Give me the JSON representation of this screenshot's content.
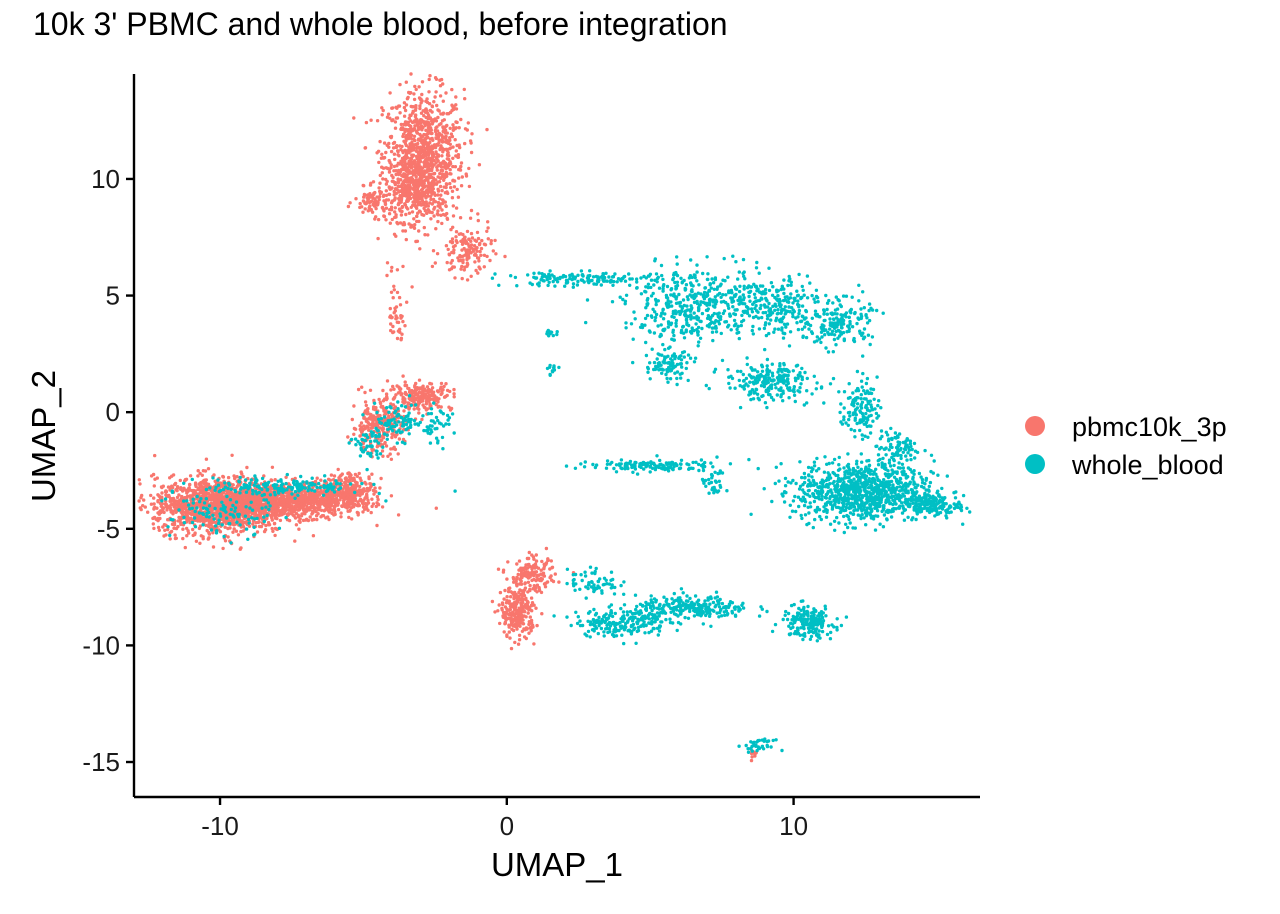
{
  "chart_data": {
    "type": "scatter",
    "title": "10k 3' PBMC and whole blood, before integration",
    "xlabel": "UMAP_1",
    "ylabel": "UMAP_2",
    "xlim": [
      -13,
      16.5
    ],
    "ylim": [
      -16.5,
      14.5
    ],
    "xticks": [
      -10,
      0,
      10
    ],
    "yticks": [
      -15,
      -10,
      -5,
      0,
      5,
      10
    ],
    "grid": false,
    "legend_position": "right",
    "series": [
      {
        "name": "pbmc10k_3p",
        "color": "#F8766D",
        "clusters": [
          {
            "cx": -2.9,
            "cy": 11.0,
            "sx": 0.7,
            "sy": 1.4,
            "n": 900
          },
          {
            "cx": -3.3,
            "cy": 9.6,
            "sx": 0.45,
            "sy": 0.7,
            "n": 300
          },
          {
            "cx": -4.6,
            "cy": 9.0,
            "sx": 0.35,
            "sy": 0.3,
            "n": 80
          },
          {
            "cx": -1.4,
            "cy": 6.9,
            "sx": 0.45,
            "sy": 0.55,
            "n": 140
          },
          {
            "cx": -4.0,
            "cy": 4.8,
            "sx": 0.1,
            "sy": 0.9,
            "n": 25
          },
          {
            "cx": -3.7,
            "cy": 4.0,
            "sx": 0.1,
            "sy": 0.6,
            "n": 20
          },
          {
            "cx": -10.0,
            "cy": -4.0,
            "sx": 1.15,
            "sy": 0.6,
            "n": 1400
          },
          {
            "cx": -7.6,
            "cy": -3.8,
            "sx": 1.2,
            "sy": 0.35,
            "n": 800
          },
          {
            "cx": -5.5,
            "cy": -3.4,
            "sx": 0.45,
            "sy": 0.4,
            "n": 280
          },
          {
            "cx": -4.5,
            "cy": -0.6,
            "sx": 0.45,
            "sy": 0.55,
            "n": 260
          },
          {
            "cx": -3.0,
            "cy": 0.7,
            "sx": 0.55,
            "sy": 0.3,
            "n": 220
          },
          {
            "cx": 0.4,
            "cy": -8.6,
            "sx": 0.3,
            "sy": 0.55,
            "n": 260
          },
          {
            "cx": 0.9,
            "cy": -7.0,
            "sx": 0.4,
            "sy": 0.35,
            "n": 140
          },
          {
            "cx": 8.6,
            "cy": -14.7,
            "sx": 0.08,
            "sy": 0.12,
            "n": 10
          }
        ]
      },
      {
        "name": "whole_blood",
        "color": "#00BFC4",
        "clusters": [
          {
            "cx": 2.5,
            "cy": 5.7,
            "sx": 1.3,
            "sy": 0.15,
            "n": 140
          },
          {
            "cx": 6.5,
            "cy": 4.6,
            "sx": 1.2,
            "sy": 0.8,
            "n": 420
          },
          {
            "cx": 9.3,
            "cy": 4.6,
            "sx": 0.9,
            "sy": 0.7,
            "n": 260
          },
          {
            "cx": 11.6,
            "cy": 3.8,
            "sx": 0.55,
            "sy": 0.5,
            "n": 160
          },
          {
            "cx": 5.6,
            "cy": 2.0,
            "sx": 0.4,
            "sy": 0.35,
            "n": 90
          },
          {
            "cx": 9.2,
            "cy": 1.3,
            "sx": 0.8,
            "sy": 0.4,
            "n": 220
          },
          {
            "cx": 12.3,
            "cy": 0.2,
            "sx": 0.3,
            "sy": 0.6,
            "n": 120
          },
          {
            "cx": 12.5,
            "cy": -3.4,
            "sx": 1.2,
            "sy": 0.65,
            "n": 950
          },
          {
            "cx": 14.8,
            "cy": -4.0,
            "sx": 0.5,
            "sy": 0.2,
            "n": 140
          },
          {
            "cx": 13.6,
            "cy": -1.5,
            "sx": 0.35,
            "sy": 0.35,
            "n": 80
          },
          {
            "cx": 4.8,
            "cy": -2.3,
            "sx": 1.2,
            "sy": 0.12,
            "n": 130
          },
          {
            "cx": 7.2,
            "cy": -3.0,
            "sx": 0.2,
            "sy": 0.45,
            "n": 35
          },
          {
            "cx": 3.0,
            "cy": -7.3,
            "sx": 0.45,
            "sy": 0.3,
            "n": 60
          },
          {
            "cx": 4.0,
            "cy": -9.0,
            "sx": 0.8,
            "sy": 0.3,
            "n": 200
          },
          {
            "cx": 6.5,
            "cy": -8.4,
            "sx": 1.0,
            "sy": 0.25,
            "n": 260
          },
          {
            "cx": 10.5,
            "cy": -9.0,
            "sx": 0.45,
            "sy": 0.35,
            "n": 180
          },
          {
            "cx": 8.8,
            "cy": -14.3,
            "sx": 0.25,
            "sy": 0.12,
            "n": 35
          },
          {
            "cx": -3.8,
            "cy": -0.4,
            "sx": 0.5,
            "sy": 0.4,
            "n": 90
          },
          {
            "cx": -4.8,
            "cy": -1.5,
            "sx": 0.3,
            "sy": 0.4,
            "n": 50
          },
          {
            "cx": -7.8,
            "cy": -3.2,
            "sx": 1.4,
            "sy": 0.2,
            "n": 180
          },
          {
            "cx": -10.0,
            "cy": -4.4,
            "sx": 0.9,
            "sy": 0.5,
            "n": 110
          },
          {
            "cx": -2.4,
            "cy": -0.6,
            "sx": 0.3,
            "sy": 0.4,
            "n": 40
          },
          {
            "cx": 1.5,
            "cy": 3.4,
            "sx": 0.1,
            "sy": 0.1,
            "n": 12
          },
          {
            "cx": 1.6,
            "cy": 1.8,
            "sx": 0.1,
            "sy": 0.1,
            "n": 12
          }
        ]
      }
    ]
  }
}
